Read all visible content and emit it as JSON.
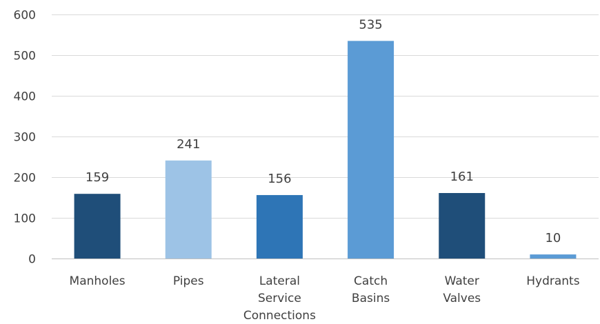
{
  "chart_data": {
    "type": "bar",
    "title": "",
    "xlabel": "",
    "ylabel": "",
    "categories": [
      [
        "Manholes"
      ],
      [
        "Pipes"
      ],
      [
        "Lateral",
        "Service",
        "Connections"
      ],
      [
        "Catch",
        "Basins"
      ],
      [
        "Water",
        "Valves"
      ],
      [
        "Hydrants"
      ]
    ],
    "values": [
      159,
      241,
      156,
      535,
      161,
      10
    ],
    "bar_colors": [
      "#1f4e79",
      "#9dc3e6",
      "#2e75b6",
      "#5b9bd5",
      "#1f4e79",
      "#5b9bd5"
    ],
    "ylim": [
      0,
      600
    ],
    "yticks": [
      0,
      100,
      200,
      300,
      400,
      500,
      600
    ],
    "grid": true,
    "data_labels": true,
    "legend": "none"
  }
}
